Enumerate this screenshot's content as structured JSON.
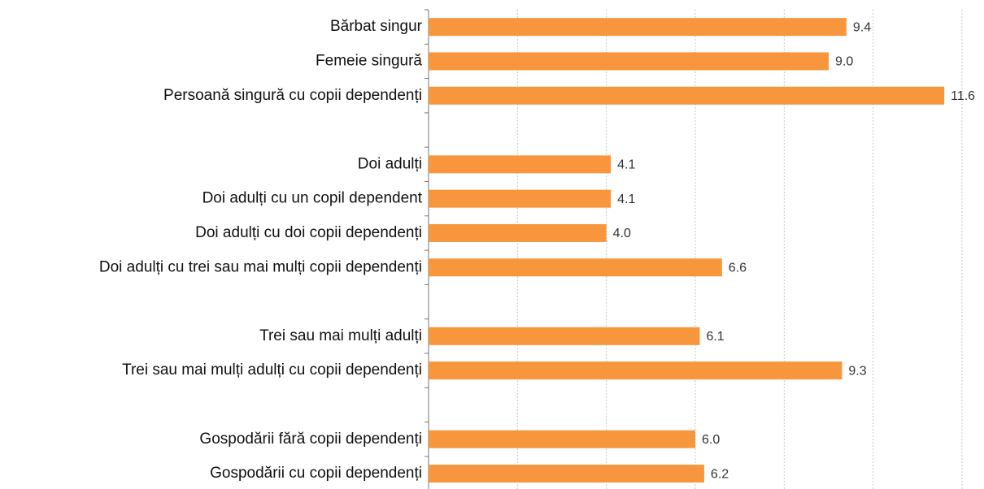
{
  "chart_data": {
    "type": "bar",
    "orientation": "horizontal",
    "categories": [
      "Bărbat singur",
      "Femeie singură",
      "Persoană singură cu copii dependenți",
      null,
      "Doi adulți",
      "Doi adulți cu un copil dependent",
      "Doi adulți cu doi copii dependenți",
      "Doi adulți cu trei sau mai mulți copii dependenți",
      null,
      "Trei sau mai mulți adulți",
      "Trei sau mai mulți adulți cu copii dependenți",
      null,
      "Gospodării fără copii dependenți",
      "Gospodării cu copii dependenți"
    ],
    "values": [
      9.4,
      9.0,
      11.6,
      null,
      4.1,
      4.1,
      4.0,
      6.6,
      null,
      6.1,
      9.3,
      null,
      6.0,
      6.2
    ],
    "value_labels": [
      "9.4",
      "9.0",
      "11.6",
      null,
      "4.1",
      "4.1",
      "4.0",
      "6.6",
      null,
      "6.1",
      "9.3",
      null,
      "6.0",
      "6.2"
    ],
    "color": "#f7963c",
    "xlim": [
      0,
      12
    ],
    "xticks": [
      2,
      4,
      6,
      8,
      10,
      12
    ],
    "grid": true
  }
}
